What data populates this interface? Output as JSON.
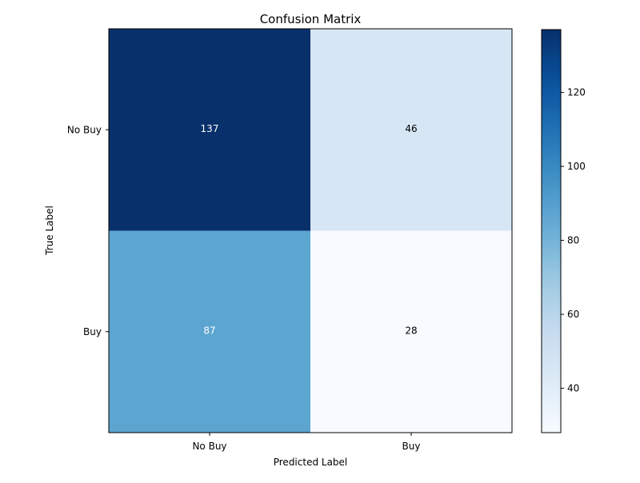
{
  "chart_data": {
    "type": "heatmap",
    "title": "Confusion Matrix",
    "xlabel": "Predicted Label",
    "ylabel": "True Label",
    "x_categories": [
      "No Buy",
      "Buy"
    ],
    "y_categories": [
      "No Buy",
      "Buy"
    ],
    "values": [
      [
        137,
        46
      ],
      [
        87,
        28
      ]
    ],
    "colormap": "Blues",
    "color_range": [
      28,
      137
    ],
    "colorbar_ticks": [
      40,
      60,
      80,
      100,
      120
    ],
    "grid": false,
    "colorbar_position": "right"
  }
}
